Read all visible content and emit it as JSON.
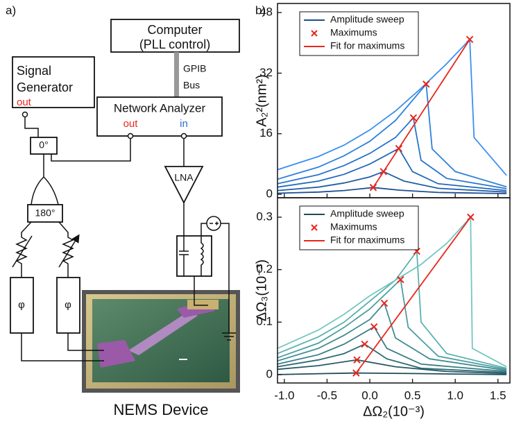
{
  "diagram": {
    "panel": "a)",
    "computer": [
      "Computer",
      "(PLL control)"
    ],
    "bus": [
      "GPIB",
      "Bus"
    ],
    "signal_generator": {
      "name": [
        "Signal",
        "Generator"
      ],
      "port": "out"
    },
    "network_analyzer": {
      "name": "Network Analyzer",
      "ports": [
        "out",
        "in"
      ]
    },
    "splitter": "0°",
    "hybrid": "180°",
    "phase_shifters": [
      "φ",
      "φ"
    ],
    "amplifier": "LNA",
    "device": "NEMS Device"
  },
  "panel_b": "b)",
  "chart_data": [
    {
      "type": "line",
      "ylabel": "A₂²(nm²)",
      "xlim": [
        -1.08,
        1.64
      ],
      "ylim": [
        -0.9,
        50.4
      ],
      "xticks": [
        -1,
        -0.5,
        0,
        0.5,
        1,
        1.5
      ],
      "show_xtick_labels": false,
      "yticks": [
        0,
        16,
        32,
        48
      ],
      "legend": "upper left",
      "series": [
        {
          "name": "Amplitude sweep",
          "type": "line",
          "color": "#1d4f8f",
          "x": [
            -1.08,
            -0.6,
            -0.3,
            0.04,
            0.35,
            0.8,
            1.6
          ],
          "values": [
            0.3,
            0.6,
            1.0,
            1.8,
            1.1,
            0.5,
            0.2
          ]
        },
        {
          "type": "line",
          "color": "#1f5fa8",
          "x": [
            -1.08,
            -0.6,
            -0.3,
            0,
            0.16,
            0.4,
            0.8,
            1.6
          ],
          "values": [
            1.0,
            1.9,
            3.0,
            4.6,
            6.0,
            3.5,
            1.6,
            0.6
          ]
        },
        {
          "type": "line",
          "color": "#2268bb",
          "x": [
            -1.08,
            -0.6,
            -0.3,
            0,
            0.34,
            0.5,
            0.8,
            1.6
          ],
          "values": [
            1.9,
            3.5,
            5.3,
            8.0,
            12.1,
            6.0,
            2.8,
            1.0
          ]
        },
        {
          "type": "line",
          "color": "#2673cc",
          "x": [
            -1.08,
            -0.6,
            -0.3,
            0,
            0.3,
            0.51,
            0.6,
            0.9,
            1.6
          ],
          "values": [
            2.8,
            5.2,
            7.6,
            10.8,
            15.0,
            20.2,
            9.0,
            4.2,
            1.5
          ]
        },
        {
          "type": "line",
          "color": "#2d80dc",
          "x": [
            -1.08,
            -0.6,
            -0.3,
            0,
            0.3,
            0.66,
            0.73,
            1.0,
            1.6
          ],
          "values": [
            4.0,
            7.2,
            10.2,
            14.0,
            19.5,
            29.1,
            12.0,
            6.0,
            2.0
          ]
        },
        {
          "type": "line",
          "color": "#3a8ff0",
          "x": [
            -1.08,
            -0.6,
            -0.3,
            0,
            0.3,
            0.6,
            0.9,
            1.17,
            1.22,
            1.6
          ],
          "values": [
            6.5,
            10,
            13,
            17,
            22,
            28,
            34.5,
            40.9,
            15,
            5
          ]
        },
        {
          "name": "Maximums",
          "type": "scatter",
          "marker": "x",
          "color": "#e8261c",
          "x": [
            0.04,
            0.16,
            0.34,
            0.51,
            0.66,
            1.17
          ],
          "values": [
            1.8,
            6.0,
            12.1,
            20.2,
            29.1,
            40.9
          ]
        },
        {
          "name": "Fit for maximums",
          "type": "line",
          "color": "#e8261c",
          "x": [
            0.04,
            1.17
          ],
          "values": [
            1.8,
            40.9
          ]
        }
      ]
    },
    {
      "type": "line",
      "ylabel": "ΔΩ₃(10⁻³)",
      "xlabel": "ΔΩ₂(10⁻³)",
      "xlim": [
        -1.08,
        1.64
      ],
      "ylim": [
        -0.016,
        0.337
      ],
      "xticks": [
        {
          "value": -1,
          "label": "-1.0"
        },
        -0.5,
        {
          "value": 0,
          "label": "0.0"
        },
        0.5,
        {
          "value": 1,
          "label": "1.0"
        },
        1.5
      ],
      "show_xtick_labels": true,
      "yticks": [
        0,
        0.1,
        0.2,
        0.3
      ],
      "legend": "upper left",
      "series": [
        {
          "name": "Amplitude sweep",
          "type": "line",
          "color": "#1e4a55",
          "x": [
            -1.08,
            -0.5,
            -0.16,
            0.5,
            1.6
          ],
          "values": [
            0.0,
            0.002,
            0.003,
            0.002,
            0.0
          ]
        },
        {
          "type": "line",
          "color": "#265a66",
          "x": [
            -1.08,
            -0.6,
            -0.15,
            0.3,
            0.9,
            1.6
          ],
          "values": [
            0.01,
            0.017,
            0.028,
            0.015,
            0.006,
            0.002
          ]
        },
        {
          "type": "line",
          "color": "#2e6a75",
          "x": [
            -1.08,
            -0.6,
            -0.3,
            -0.06,
            0.2,
            0.6,
            1.6
          ],
          "values": [
            0.015,
            0.028,
            0.04,
            0.058,
            0.03,
            0.012,
            0.004
          ]
        },
        {
          "type": "line",
          "color": "#377b84",
          "x": [
            -1.08,
            -0.6,
            -0.3,
            0.05,
            0.2,
            0.6,
            1.6
          ],
          "values": [
            0.02,
            0.038,
            0.058,
            0.091,
            0.05,
            0.02,
            0.006
          ]
        },
        {
          "type": "line",
          "color": "#418c92",
          "x": [
            -1.08,
            -0.6,
            -0.3,
            0,
            0.17,
            0.3,
            0.7,
            1.6
          ],
          "values": [
            0.026,
            0.05,
            0.075,
            0.105,
            0.136,
            0.07,
            0.03,
            0.008
          ]
        },
        {
          "type": "line",
          "color": "#4d9ea1",
          "x": [
            -1.08,
            -0.6,
            -0.3,
            0,
            0.36,
            0.45,
            0.8,
            1.6
          ],
          "values": [
            0.032,
            0.06,
            0.09,
            0.125,
            0.181,
            0.09,
            0.035,
            0.01
          ]
        },
        {
          "type": "line",
          "color": "#5cb1b0",
          "x": [
            -1.08,
            -0.6,
            -0.3,
            0,
            0.3,
            0.55,
            0.6,
            0.9,
            1.6
          ],
          "values": [
            0.04,
            0.072,
            0.1,
            0.14,
            0.18,
            0.235,
            0.1,
            0.04,
            0.012
          ]
        },
        {
          "type": "line",
          "color": "#74c6c0",
          "x": [
            -1.08,
            -0.6,
            -0.3,
            0,
            0.3,
            0.6,
            0.9,
            1.18,
            1.2,
            1.6
          ],
          "values": [
            0.05,
            0.085,
            0.115,
            0.15,
            0.18,
            0.21,
            0.25,
            0.3,
            0.05,
            0.015
          ]
        },
        {
          "name": "Maximums",
          "type": "scatter",
          "marker": "x",
          "color": "#e8261c",
          "x": [
            -0.16,
            -0.15,
            -0.06,
            0.05,
            0.17,
            0.36,
            0.55,
            1.18
          ],
          "values": [
            0.003,
            0.028,
            0.058,
            0.091,
            0.136,
            0.181,
            0.235,
            0.3
          ]
        },
        {
          "name": "Fit for maximums",
          "type": "line",
          "color": "#e8261c",
          "x": [
            -0.16,
            1.18
          ],
          "values": [
            0.003,
            0.3
          ]
        }
      ]
    }
  ]
}
